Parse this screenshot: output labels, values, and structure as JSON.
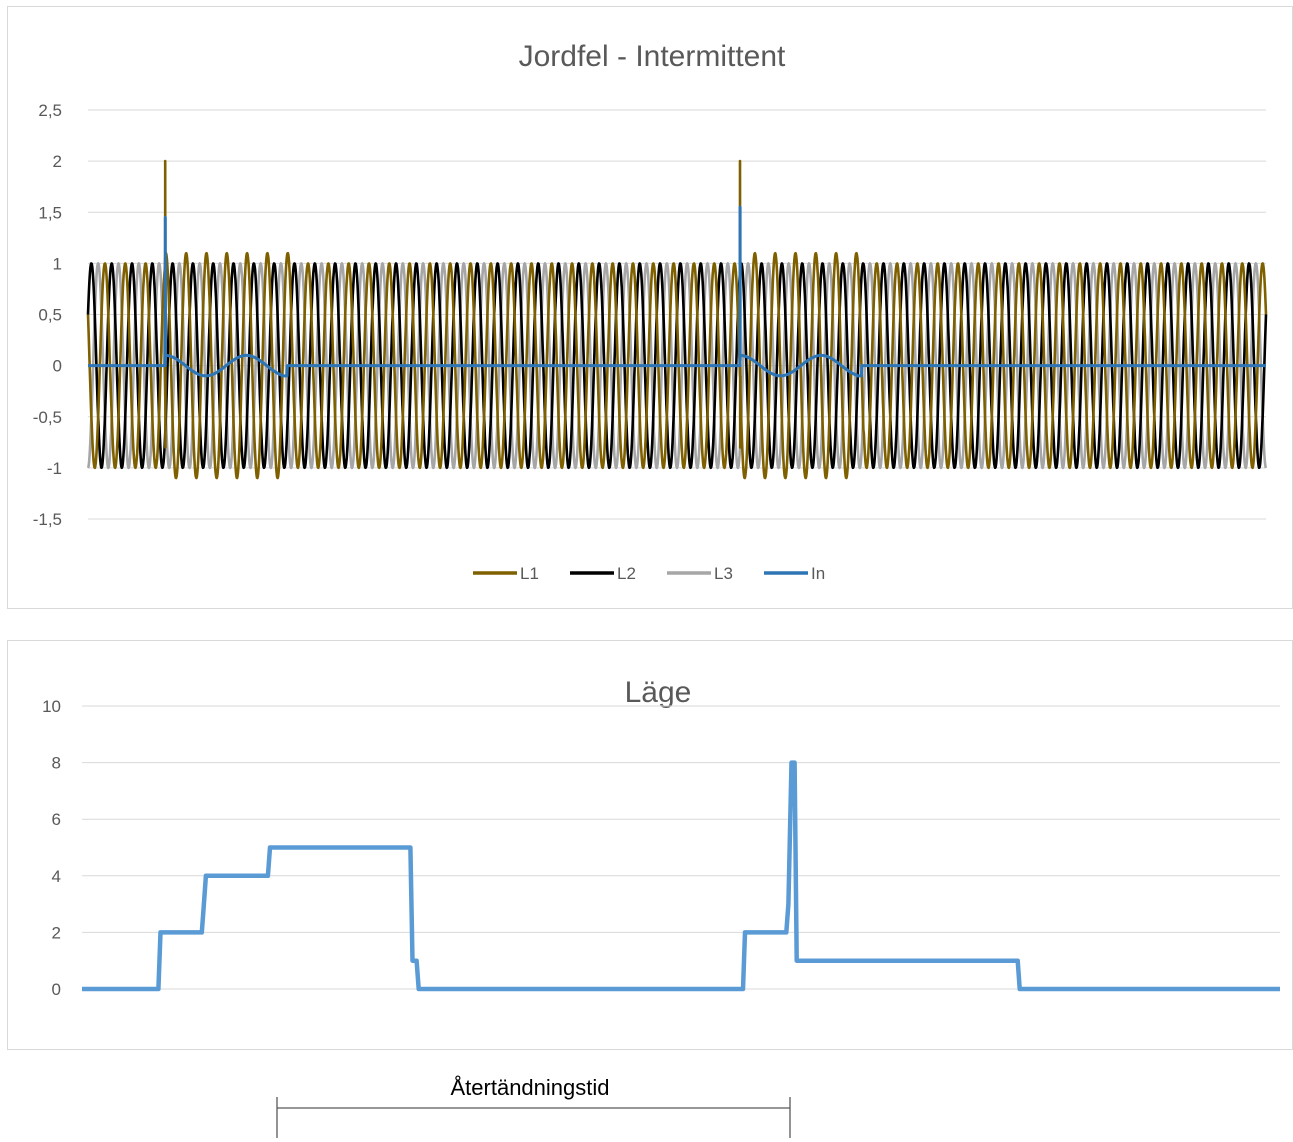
{
  "chart_data": [
    {
      "type": "line",
      "title": "Jordfel - Intermittent",
      "xlabel": "",
      "ylabel": "",
      "ylim": [
        -1.5,
        2.5
      ],
      "ytick_labels": [
        "2,5",
        "2",
        "1,5",
        "1",
        "0,5",
        "0",
        "-0,5",
        "-1",
        "-1,5"
      ],
      "ytick_values": [
        2.5,
        2,
        1.5,
        1,
        0.5,
        0,
        -0.5,
        -1,
        -1.5
      ],
      "grid": true,
      "legend_position": "bottom",
      "x_range": [
        0,
        58
      ],
      "series": [
        {
          "name": "L1",
          "color": "#7f6000",
          "amplitude": 1.0,
          "phase_deg": 60,
          "fault_events": [
            {
              "x": 3.8,
              "peak": 2.0
            },
            {
              "x": 32.1,
              "peak": 2.0
            }
          ],
          "disturbed_amplitude": 1.1,
          "disturbed_ranges": [
            [
              3.8,
              10.0
            ],
            [
              32.1,
              38.2
            ]
          ]
        },
        {
          "name": "L2",
          "color": "#000000",
          "amplitude": 1.0,
          "phase_deg": -60
        },
        {
          "name": "L3",
          "color": "#a6a6a6",
          "amplitude": 1.0,
          "phase_deg": 180
        },
        {
          "name": "In",
          "color": "#2e75b6",
          "amplitude": 0.1,
          "period": 4.0,
          "spikes": [
            {
              "x": 3.8,
              "peak": 1.45
            },
            {
              "x": 32.1,
              "peak": 1.55
            }
          ],
          "active_ranges": [
            [
              3.8,
              9.8
            ],
            [
              32.1,
              38.1
            ]
          ],
          "end_offset": -0.1
        }
      ]
    },
    {
      "type": "line",
      "title": "Läge",
      "xlabel": "",
      "ylabel": "",
      "ylim": [
        0,
        10
      ],
      "ytick_labels": [
        "10",
        "8",
        "6",
        "4",
        "2",
        "0"
      ],
      "ytick_values": [
        10,
        8,
        6,
        4,
        2,
        0
      ],
      "grid": true,
      "series": [
        {
          "name": "",
          "color": "#5b9bd5",
          "points": [
            [
              0,
              0
            ],
            [
              3.7,
              0
            ],
            [
              3.8,
              2
            ],
            [
              5.8,
              2
            ],
            [
              5.9,
              3
            ],
            [
              6.0,
              4
            ],
            [
              9.0,
              4
            ],
            [
              9.1,
              5
            ],
            [
              15.9,
              5
            ],
            [
              16.0,
              1
            ],
            [
              16.2,
              1
            ],
            [
              16.3,
              0
            ],
            [
              32.0,
              0
            ],
            [
              32.1,
              2
            ],
            [
              34.1,
              2
            ],
            [
              34.2,
              3
            ],
            [
              34.35,
              8
            ],
            [
              34.5,
              8
            ],
            [
              34.6,
              1
            ],
            [
              45.3,
              1
            ],
            [
              45.4,
              0
            ],
            [
              58,
              0
            ]
          ]
        }
      ]
    }
  ],
  "annotation": {
    "label": "Återtändningstid"
  }
}
